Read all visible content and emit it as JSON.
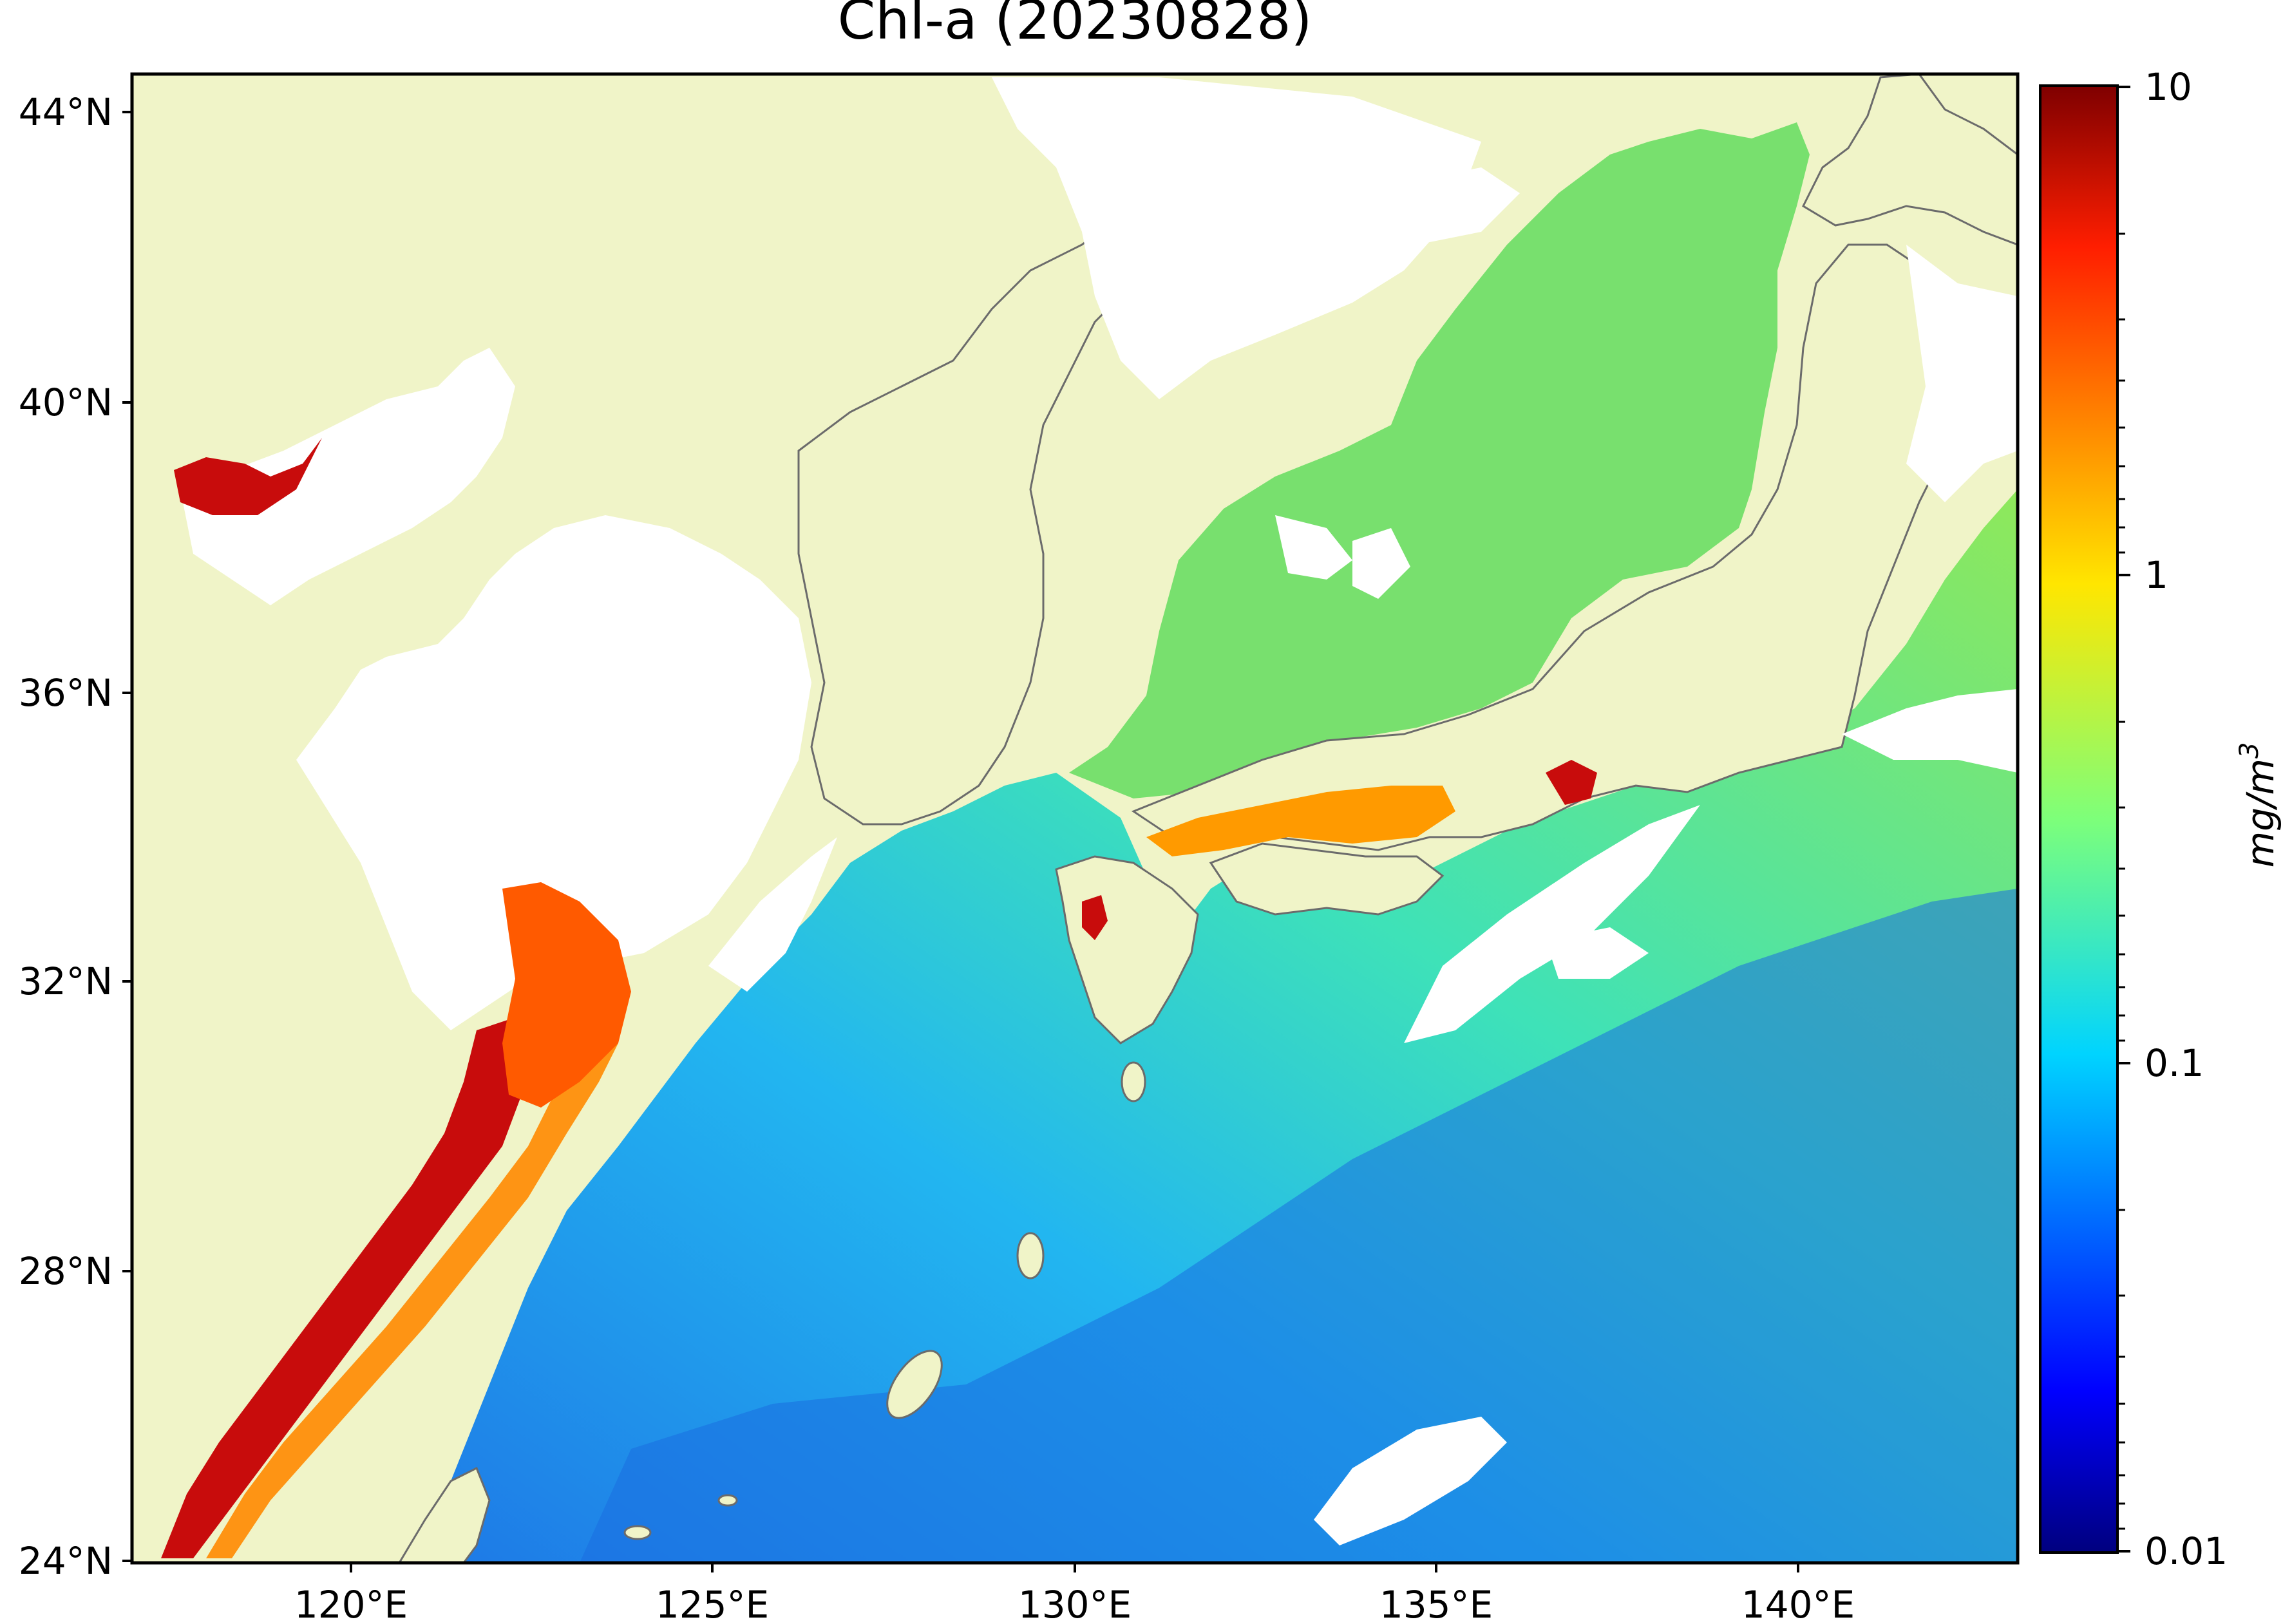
{
  "figure": {
    "title": "Chl-a (20230828)"
  },
  "map": {
    "lat_ticks": [
      "44°N",
      "40°N",
      "36°N",
      "32°N",
      "28°N",
      "24°N"
    ],
    "lon_ticks": [
      "120°E",
      "125°E",
      "130°E",
      "135°E",
      "140°E"
    ],
    "lat_range": [
      24,
      44.5
    ],
    "lon_range": [
      117,
      143
    ],
    "colors": {
      "land": "#f0f4c8",
      "cloud_or_nodata": "#ffffff",
      "coastline": "#6b6b6b"
    }
  },
  "colorbar": {
    "label": "mg/m",
    "label_superscript": "3",
    "ticks": [
      "10",
      "1",
      "0.1",
      "0.01"
    ],
    "scale": "log",
    "range": [
      0.01,
      10
    ],
    "colormap": "jet"
  }
}
